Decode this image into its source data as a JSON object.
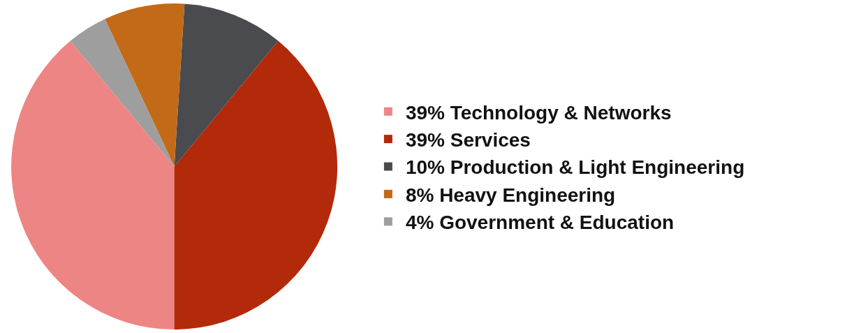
{
  "chart_data": {
    "type": "pie",
    "categories": [
      "39% Technology & Networks",
      "39% Services",
      "10% Production & Light Engineering",
      "8% Heavy Engineering",
      "4% Government & Education"
    ],
    "values": [
      39,
      39,
      10,
      8,
      4
    ],
    "colors": [
      "#ee8585",
      "#b32a0a",
      "#4a4b4e",
      "#c26a18",
      "#9e9e9e"
    ],
    "legend": "right"
  }
}
